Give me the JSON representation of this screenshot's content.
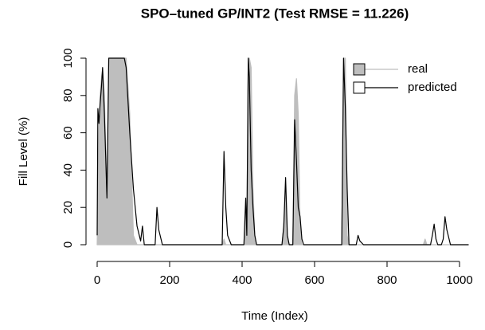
{
  "chart_data": {
    "type": "line",
    "title": "SPO–tuned GP/INT2 (Test RMSE = 11.226)",
    "x_label": "Time (Index)",
    "y_label": "Fill Level (%)",
    "x": [
      0,
      2,
      5,
      8,
      12,
      15,
      20,
      27,
      32,
      40,
      60,
      75,
      80,
      90,
      100,
      110,
      120,
      125,
      130,
      160,
      165,
      170,
      180,
      300,
      345,
      350,
      355,
      360,
      370,
      405,
      410,
      413,
      417,
      420,
      425,
      430,
      435,
      440,
      450,
      510,
      515,
      520,
      525,
      530,
      540,
      545,
      550,
      555,
      560,
      565,
      570,
      670,
      675,
      680,
      685,
      690,
      695,
      715,
      720,
      725,
      735,
      900,
      905,
      910,
      920,
      925,
      930,
      935,
      940,
      950,
      955,
      960,
      965,
      975,
      1025
    ],
    "series": [
      {
        "name": "real",
        "color": "#bebebe",
        "filled": true,
        "values": [
          0,
          30,
          60,
          80,
          90,
          94,
          80,
          25,
          100,
          100,
          100,
          100,
          100,
          70,
          5,
          0,
          0,
          0,
          0,
          0,
          0,
          0,
          0,
          0,
          0,
          3,
          0,
          0,
          0,
          0,
          20,
          5,
          100,
          100,
          95,
          30,
          5,
          0,
          0,
          0,
          10,
          30,
          3,
          0,
          0,
          80,
          89,
          70,
          10,
          0,
          0,
          0,
          0,
          100,
          100,
          5,
          0,
          0,
          0,
          0,
          0,
          0,
          3,
          0,
          0,
          0,
          0,
          0,
          0,
          0,
          0,
          0,
          0,
          0,
          0
        ]
      },
      {
        "name": "predicted",
        "color": "#000000",
        "filled": false,
        "values": [
          5,
          73,
          65,
          75,
          85,
          95,
          70,
          25,
          100,
          100,
          100,
          100,
          95,
          60,
          30,
          10,
          2,
          10,
          0,
          0,
          20,
          8,
          0,
          0,
          0,
          50,
          20,
          5,
          0,
          0,
          25,
          5,
          100,
          90,
          40,
          20,
          5,
          0,
          0,
          0,
          10,
          36,
          5,
          0,
          0,
          67,
          45,
          20,
          15,
          3,
          0,
          0,
          0,
          100,
          73,
          30,
          0,
          0,
          5,
          2,
          0,
          0,
          0,
          0,
          0,
          5,
          11,
          3,
          0,
          0,
          3,
          15,
          8,
          0,
          0
        ]
      }
    ],
    "xlim": [
      0,
      1000
    ],
    "ylim": [
      0,
      100
    ],
    "xticks": [
      0,
      200,
      400,
      600,
      800,
      1000
    ],
    "yticks": [
      0,
      20,
      40,
      60,
      80,
      100
    ],
    "legend": "topright"
  }
}
